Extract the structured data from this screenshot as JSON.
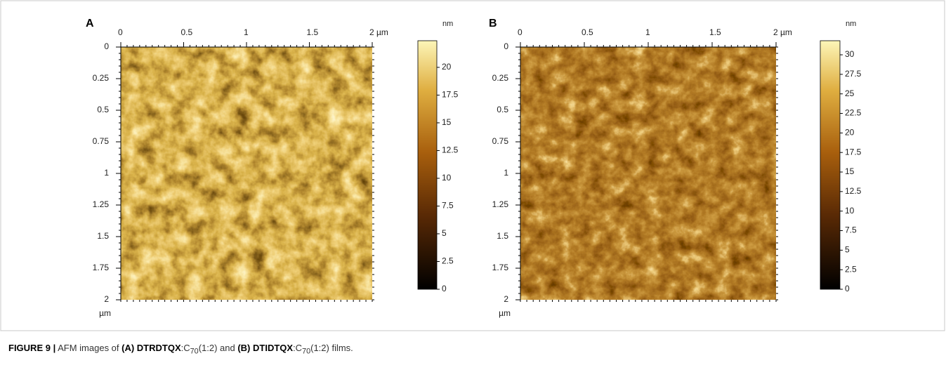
{
  "panels": [
    {
      "label": "A",
      "xlim": [
        0,
        2
      ],
      "x_ticks": [
        0,
        0.5,
        1,
        1.5,
        {
          "value": 2,
          "label": "2 µm"
        }
      ],
      "ylim": [
        0,
        2
      ],
      "y_ticks": [
        0,
        0.25,
        0.5,
        0.75,
        1,
        1.25,
        1.5,
        1.75,
        2
      ],
      "y_unit": "µm",
      "colorbar": {
        "unit": "nm",
        "range": [
          0,
          22.4
        ],
        "ticks": [
          0,
          2.5,
          5,
          7.5,
          10,
          12.5,
          15,
          17.5,
          20
        ]
      }
    },
    {
      "label": "B",
      "xlim": [
        0,
        2
      ],
      "x_ticks": [
        0,
        0.5,
        1,
        1.5,
        {
          "value": 2,
          "label": "2 µm"
        }
      ],
      "ylim": [
        0,
        2
      ],
      "y_ticks": [
        0,
        0.25,
        0.5,
        0.75,
        1,
        1.25,
        1.5,
        1.75,
        2
      ],
      "y_unit": "µm",
      "colorbar": {
        "unit": "nm",
        "range": [
          0,
          31.8
        ],
        "ticks": [
          0,
          2.5,
          5,
          7.5,
          10,
          12.5,
          15,
          17.5,
          20,
          22.5,
          25,
          27.5,
          30
        ]
      }
    }
  ],
  "caption": {
    "label": "FIGURE 9 |",
    "parts": [
      "AFM images of ",
      "(A) DTRDTQX",
      ":C",
      "70",
      "(1:2) and ",
      "(B) DTIDTQX",
      ":C",
      "70",
      "(1:2) films."
    ]
  }
}
